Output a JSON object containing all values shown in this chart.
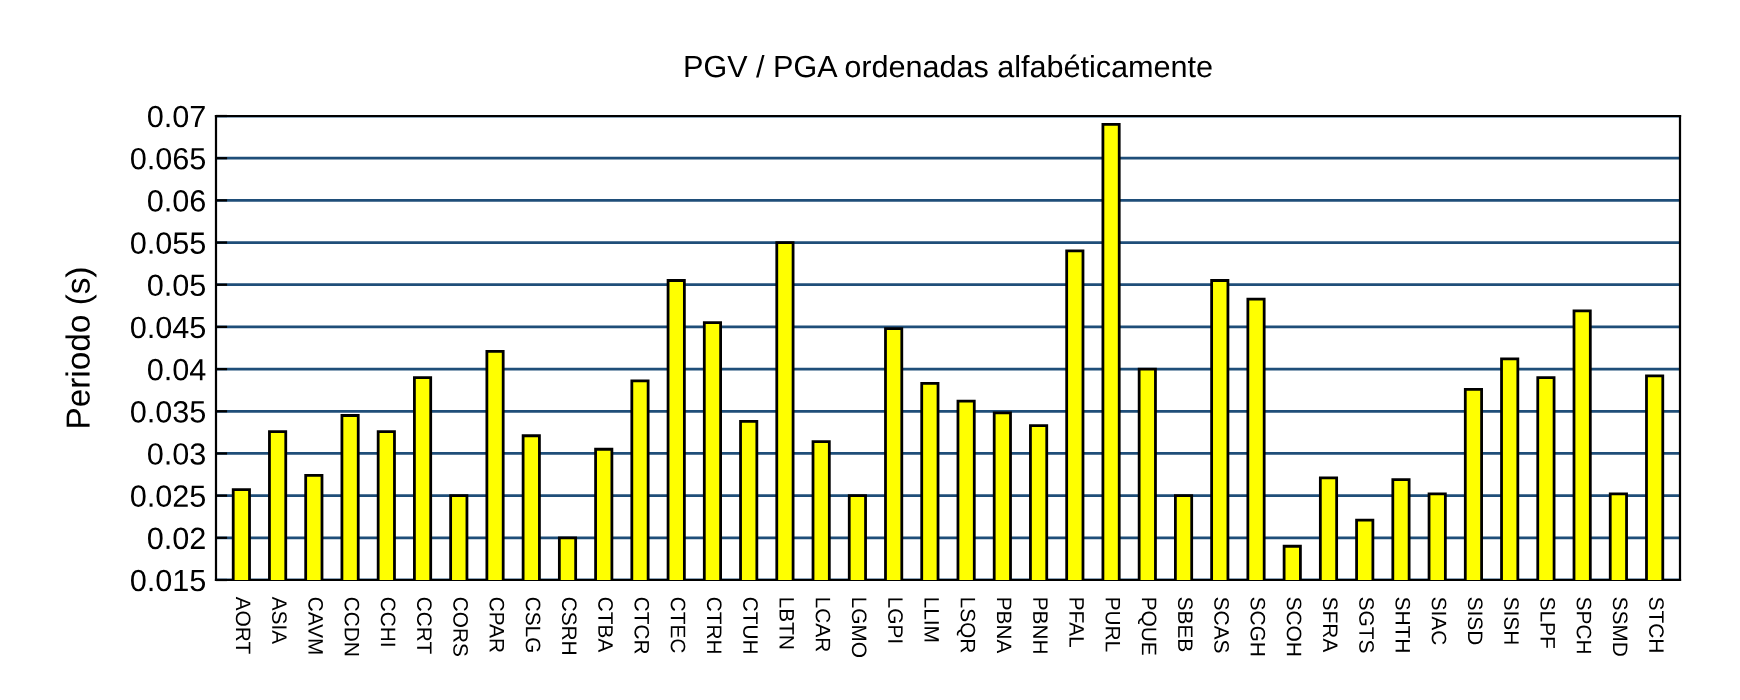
{
  "chart_data": {
    "type": "bar",
    "title": "PGV / PGA ordenadas alfabéticamente",
    "ylabel": "Periodo (s)",
    "categories": [
      "AORT",
      "ASIA",
      "CAVM",
      "CCDN",
      "CCHI",
      "CCRT",
      "CORS",
      "CPAR",
      "CSLG",
      "CSRH",
      "CTBA",
      "CTCR",
      "CTEC",
      "CTRH",
      "CTUH",
      "LBTN",
      "LCAR",
      "LGMO",
      "LGPI",
      "LLIM",
      "LSQR",
      "PBNA",
      "PBNH",
      "PFAL",
      "PURL",
      "PQUE",
      "SBEB",
      "SCAS",
      "SCGH",
      "SCOH",
      "SFRA",
      "SGTS",
      "SHTH",
      "SIAC",
      "SISD",
      "SISH",
      "SLPF",
      "SPCH",
      "SSMD",
      "STCH"
    ],
    "values": [
      0.0257,
      0.0326,
      0.0274,
      0.0345,
      0.0326,
      0.039,
      0.025,
      0.0421,
      0.0321,
      0.02,
      0.0305,
      0.0386,
      0.0505,
      0.0455,
      0.0338,
      0.055,
      0.0314,
      0.025,
      0.0448,
      0.0383,
      0.0362,
      0.0348,
      0.0333,
      0.054,
      0.069,
      0.04,
      0.025,
      0.0505,
      0.0483,
      0.019,
      0.0271,
      0.0221,
      0.0269,
      0.0252,
      0.0376,
      0.0412,
      0.039,
      0.0469,
      0.0252,
      0.0392
    ],
    "color": "#ffff00",
    "ylim": [
      0.015,
      0.07
    ],
    "yticks": [
      0.015,
      0.02,
      0.025,
      0.03,
      0.035,
      0.04,
      0.045,
      0.05,
      0.055,
      0.06,
      0.065,
      0.07
    ],
    "grid": "y",
    "legend": false
  }
}
